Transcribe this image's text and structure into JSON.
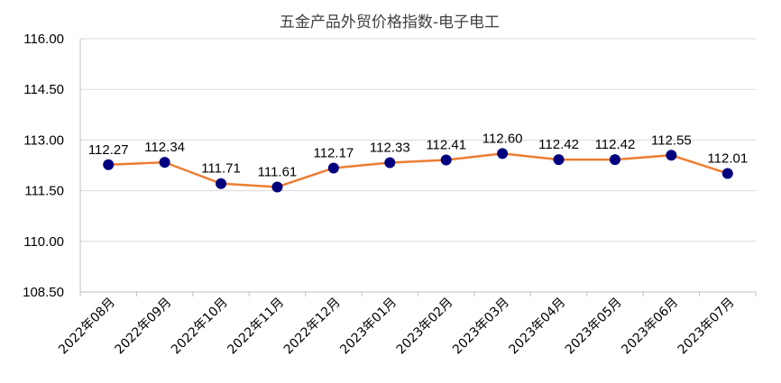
{
  "chart_data": {
    "type": "line",
    "title": "五金产品外贸价格指数-电子电工",
    "xlabel": "",
    "ylabel": "",
    "categories": [
      "2022年08月",
      "2022年09月",
      "2022年10月",
      "2022年11月",
      "2022年12月",
      "2023年01月",
      "2023年02月",
      "2023年03月",
      "2023年04月",
      "2023年05月",
      "2023年06月",
      "2023年07月"
    ],
    "series": [
      {
        "values": [
          112.27,
          112.34,
          111.71,
          111.61,
          112.17,
          112.33,
          112.41,
          112.6,
          112.42,
          112.42,
          112.55,
          112.01
        ],
        "labels": [
          "112.27",
          "112.34",
          "111.71",
          "111.61",
          "112.17",
          "112.33",
          "112.41",
          "112.60",
          "112.42",
          "112.42",
          "112.55",
          "112.01"
        ]
      }
    ],
    "ylim": [
      108.5,
      116.0
    ],
    "yticks": [
      "108.50",
      "110.00",
      "111.50",
      "113.00",
      "114.50",
      "116.00"
    ],
    "grid": true,
    "legend": "none",
    "colors": {
      "line": "#ed7d31",
      "marker": "#00007f",
      "grid": "#d9d9d9"
    }
  }
}
